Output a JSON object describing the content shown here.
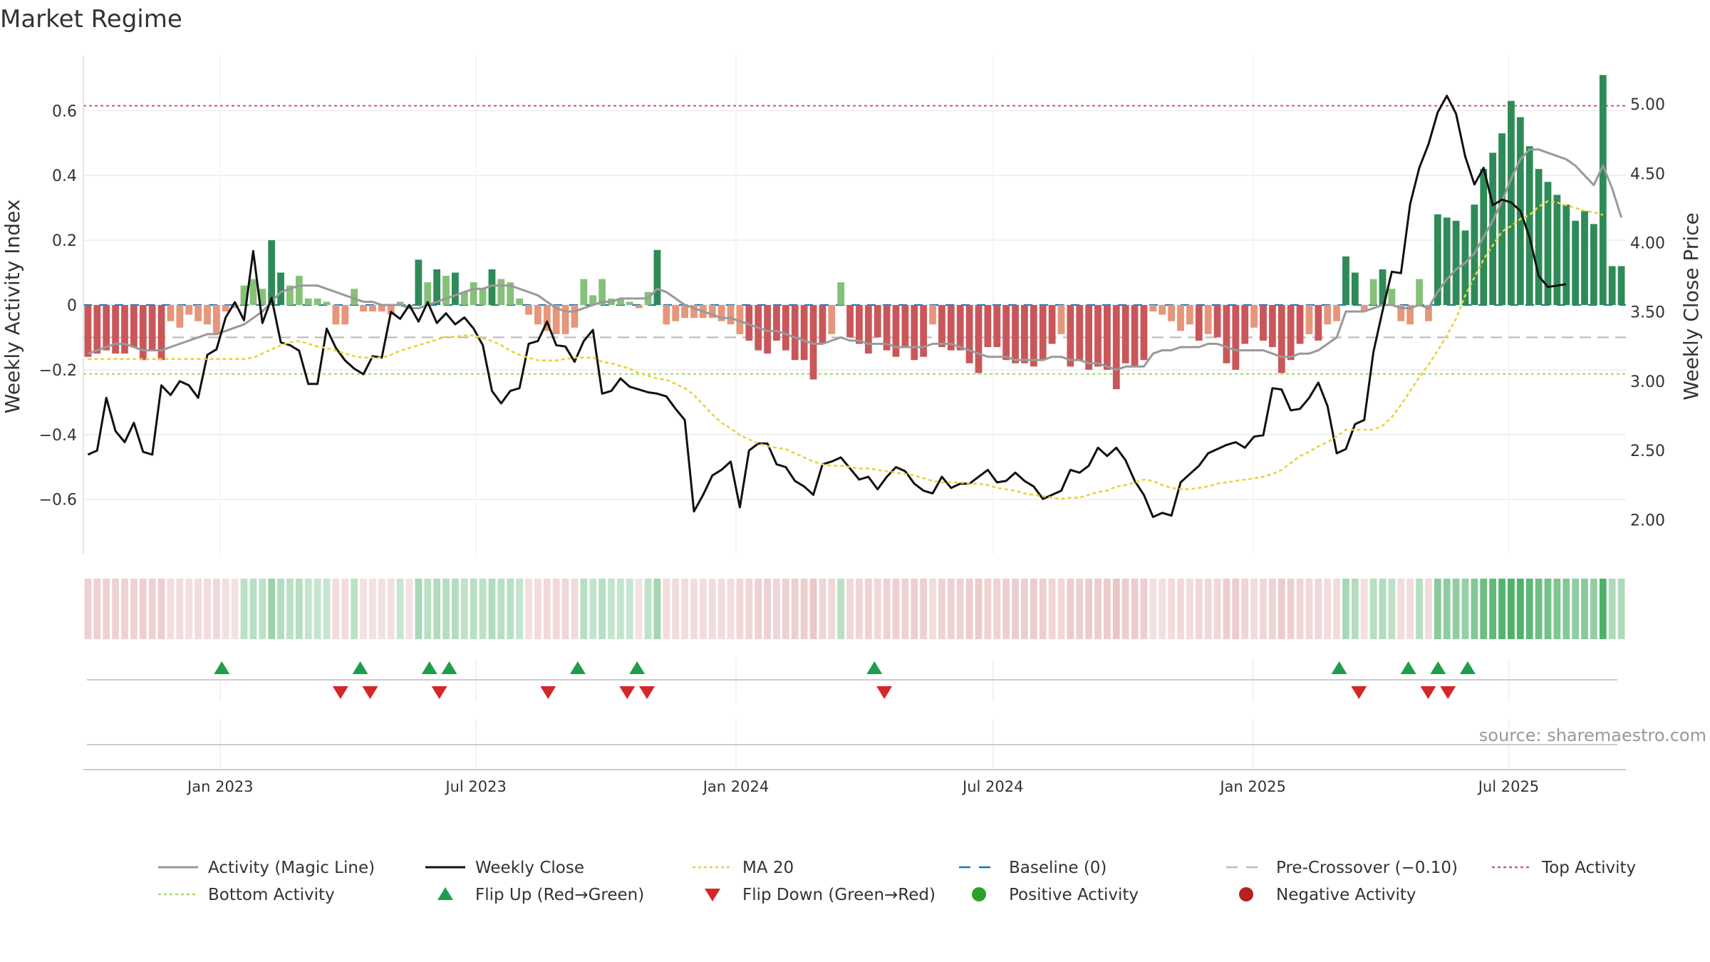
{
  "chart_data": {
    "type": "bar",
    "title": "Market Regime",
    "source_note": "source: sharemaestro.com",
    "x_date_range": [
      "2022-09-26",
      "2025-09-22"
    ],
    "x_ticks": [
      {
        "date": "2023-01-01",
        "label": "Jan 2023"
      },
      {
        "date": "2023-07-01",
        "label": "Jul 2023"
      },
      {
        "date": "2024-01-01",
        "label": "Jan 2024"
      },
      {
        "date": "2024-07-01",
        "label": "Jul 2024"
      },
      {
        "date": "2025-01-01",
        "label": "Jan 2025"
      },
      {
        "date": "2025-07-01",
        "label": "Jul 2025"
      }
    ],
    "y_left": {
      "label": "Weekly Activity Index",
      "range": [
        -0.77,
        0.77
      ],
      "ticks": [
        0.6,
        0.4,
        0.2,
        0,
        -0.2,
        -0.4,
        -0.6
      ],
      "tick_labels": [
        "0.6",
        "0.4",
        "0.2",
        "0",
        "−0.2",
        "−0.4",
        "−0.6"
      ]
    },
    "y_right": {
      "label": "Weekly Close Price",
      "range": [
        1.75,
        5.35
      ],
      "ticks": [
        5.0,
        4.5,
        4.0,
        3.5,
        3.0,
        2.5,
        2.0
      ],
      "tick_labels": [
        "5.00",
        "4.50",
        "4.00",
        "3.50",
        "3.00",
        "2.50",
        "2.00"
      ]
    },
    "top_activity": 0.615,
    "bottom_activity": -0.213,
    "pre_crossover": -0.1,
    "activity_bars": [
      -0.16,
      -0.15,
      -0.14,
      -0.15,
      -0.15,
      -0.13,
      -0.17,
      -0.14,
      -0.17,
      -0.05,
      -0.07,
      -0.03,
      -0.05,
      -0.06,
      -0.09,
      -0.02,
      -0.01,
      0.06,
      0.08,
      0.05,
      0.2,
      0.1,
      0.06,
      0.09,
      0.02,
      0.02,
      0.01,
      -0.06,
      -0.06,
      0.05,
      -0.02,
      -0.02,
      -0.02,
      -0.03,
      0.01,
      -0.01,
      0.14,
      0.07,
      0.11,
      0.09,
      0.1,
      0.04,
      0.07,
      0.05,
      0.11,
      0.08,
      0.07,
      0.02,
      -0.03,
      -0.06,
      -0.08,
      -0.09,
      -0.09,
      -0.07,
      0.08,
      0.03,
      0.08,
      0.02,
      0.02,
      0.01,
      -0.01,
      0.04,
      0.17,
      -0.06,
      -0.05,
      -0.04,
      -0.04,
      -0.04,
      -0.04,
      -0.05,
      -0.06,
      -0.09,
      -0.11,
      -0.14,
      -0.15,
      -0.11,
      -0.14,
      -0.17,
      -0.17,
      -0.23,
      -0.12,
      -0.09,
      0.07,
      -0.1,
      -0.12,
      -0.15,
      -0.1,
      -0.14,
      -0.16,
      -0.13,
      -0.17,
      -0.16,
      -0.06,
      -0.13,
      -0.14,
      -0.14,
      -0.18,
      -0.21,
      -0.13,
      -0.13,
      -0.17,
      -0.18,
      -0.18,
      -0.19,
      -0.17,
      -0.12,
      -0.09,
      -0.19,
      -0.17,
      -0.2,
      -0.19,
      -0.2,
      -0.26,
      -0.18,
      -0.19,
      -0.17,
      -0.02,
      -0.03,
      -0.05,
      -0.08,
      -0.06,
      -0.11,
      -0.09,
      -0.1,
      -0.18,
      -0.2,
      -0.12,
      -0.07,
      -0.11,
      -0.13,
      -0.21,
      -0.17,
      -0.12,
      -0.09,
      -0.11,
      -0.06,
      -0.05,
      0.15,
      0.1,
      -0.02,
      0.08,
      0.11,
      0.05,
      -0.05,
      -0.06,
      0.08,
      -0.05,
      0.28,
      0.27,
      0.26,
      0.23,
      0.31,
      0.42,
      0.47,
      0.53,
      0.63,
      0.58,
      0.49,
      0.42,
      0.38,
      0.34,
      0.31,
      0.26,
      0.29,
      0.25,
      0.71,
      0.12,
      0.12
    ],
    "bar_colors": {
      "positive_strong": "#2e8b57",
      "positive_light": "#86c17a",
      "negative_strong": "#c9575a",
      "negative_light": "#e6967a"
    },
    "series": [
      {
        "name": "Activity (Magic Line)",
        "color": "#999999",
        "axis": "left",
        "values": [
          -0.15,
          -0.14,
          -0.13,
          -0.12,
          -0.12,
          -0.13,
          -0.14,
          -0.14,
          -0.14,
          -0.13,
          -0.12,
          -0.11,
          -0.1,
          -0.09,
          -0.09,
          -0.08,
          -0.07,
          -0.06,
          -0.04,
          -0.02,
          0.01,
          0.04,
          0.05,
          0.06,
          0.06,
          0.06,
          0.05,
          0.04,
          0.03,
          0.02,
          0.01,
          0.01,
          0.0,
          0.0,
          0.0,
          -0.01,
          -0.01,
          0.0,
          0.01,
          0.02,
          0.03,
          0.04,
          0.05,
          0.05,
          0.06,
          0.06,
          0.06,
          0.05,
          0.04,
          0.03,
          0.01,
          -0.01,
          -0.02,
          -0.02,
          -0.01,
          0.0,
          0.01,
          0.01,
          0.02,
          0.02,
          0.02,
          0.02,
          0.05,
          0.04,
          0.02,
          0.0,
          -0.01,
          -0.02,
          -0.03,
          -0.04,
          -0.04,
          -0.05,
          -0.06,
          -0.07,
          -0.08,
          -0.08,
          -0.09,
          -0.1,
          -0.11,
          -0.12,
          -0.12,
          -0.11,
          -0.1,
          -0.11,
          -0.11,
          -0.12,
          -0.12,
          -0.12,
          -0.13,
          -0.13,
          -0.13,
          -0.13,
          -0.12,
          -0.12,
          -0.12,
          -0.13,
          -0.14,
          -0.15,
          -0.16,
          -0.16,
          -0.16,
          -0.17,
          -0.17,
          -0.17,
          -0.17,
          -0.16,
          -0.16,
          -0.17,
          -0.17,
          -0.18,
          -0.18,
          -0.19,
          -0.2,
          -0.19,
          -0.19,
          -0.19,
          -0.15,
          -0.14,
          -0.14,
          -0.13,
          -0.13,
          -0.13,
          -0.12,
          -0.12,
          -0.13,
          -0.14,
          -0.14,
          -0.14,
          -0.14,
          -0.15,
          -0.16,
          -0.16,
          -0.15,
          -0.15,
          -0.14,
          -0.12,
          -0.1,
          -0.02,
          -0.02,
          -0.02,
          -0.01,
          0.0,
          0.0,
          -0.01,
          -0.01,
          0.0,
          -0.01,
          0.04,
          0.08,
          0.11,
          0.13,
          0.16,
          0.21,
          0.26,
          0.32,
          0.39,
          0.45,
          0.48,
          0.48,
          0.47,
          0.46,
          0.45,
          0.43,
          0.4,
          0.37,
          0.43,
          0.36,
          0.27
        ]
      },
      {
        "name": "Weekly Close",
        "color": "#111111",
        "axis": "right",
        "values": [
          2.47,
          2.5,
          2.88,
          2.64,
          2.56,
          2.7,
          2.49,
          2.47,
          2.97,
          2.9,
          3.0,
          2.97,
          2.88,
          3.19,
          3.23,
          3.46,
          3.57,
          3.44,
          3.94,
          3.42,
          3.6,
          3.28,
          3.26,
          3.22,
          2.98,
          2.98,
          3.38,
          3.24,
          3.15,
          3.09,
          3.05,
          3.18,
          3.17,
          3.5,
          3.45,
          3.55,
          3.43,
          3.57,
          3.42,
          3.49,
          3.41,
          3.46,
          3.38,
          3.26,
          2.93,
          2.84,
          2.93,
          2.95,
          3.27,
          3.29,
          3.43,
          3.26,
          3.25,
          3.14,
          3.29,
          3.37,
          2.91,
          2.93,
          3.02,
          2.96,
          2.94,
          2.92,
          2.91,
          2.89,
          2.8,
          2.72,
          2.06,
          2.18,
          2.32,
          2.36,
          2.42,
          2.09,
          2.5,
          2.55,
          2.55,
          2.4,
          2.38,
          2.28,
          2.24,
          2.18,
          2.4,
          2.42,
          2.45,
          2.37,
          2.29,
          2.31,
          2.22,
          2.31,
          2.38,
          2.35,
          2.26,
          2.21,
          2.19,
          2.31,
          2.23,
          2.26,
          2.26,
          2.31,
          2.36,
          2.27,
          2.28,
          2.34,
          2.28,
          2.24,
          2.15,
          2.18,
          2.21,
          2.36,
          2.34,
          2.39,
          2.52,
          2.46,
          2.52,
          2.43,
          2.28,
          2.18,
          2.02,
          2.05,
          2.03,
          2.27,
          2.33,
          2.39,
          2.48,
          2.51,
          2.54,
          2.56,
          2.52,
          2.6,
          2.61,
          2.95,
          2.94,
          2.79,
          2.8,
          2.88,
          2.99,
          2.82,
          2.48,
          2.51,
          2.69,
          2.72,
          3.21,
          3.51,
          3.79,
          3.78,
          4.28,
          4.54,
          4.71,
          4.94,
          5.06,
          4.93,
          4.62,
          4.42,
          4.54,
          4.27,
          4.31,
          4.29,
          4.23,
          4.04,
          3.76,
          3.68,
          3.69,
          3.7
        ]
      },
      {
        "name": "MA 20",
        "color": "#e6d43a",
        "axis": "right",
        "values": [
          3.16,
          3.16,
          3.16,
          3.16,
          3.16,
          3.16,
          3.16,
          3.16,
          3.16,
          3.16,
          3.16,
          3.16,
          3.16,
          3.16,
          3.16,
          3.16,
          3.16,
          3.16,
          3.17,
          3.2,
          3.23,
          3.26,
          3.28,
          3.29,
          3.27,
          3.25,
          3.24,
          3.22,
          3.2,
          3.18,
          3.17,
          3.17,
          3.17,
          3.19,
          3.22,
          3.24,
          3.26,
          3.28,
          3.3,
          3.32,
          3.32,
          3.33,
          3.33,
          3.31,
          3.29,
          3.26,
          3.22,
          3.19,
          3.17,
          3.15,
          3.15,
          3.15,
          3.16,
          3.17,
          3.17,
          3.17,
          3.14,
          3.13,
          3.11,
          3.09,
          3.06,
          3.04,
          3.02,
          3.01,
          2.98,
          2.95,
          2.9,
          2.83,
          2.76,
          2.7,
          2.66,
          2.61,
          2.58,
          2.55,
          2.53,
          2.52,
          2.51,
          2.48,
          2.45,
          2.42,
          2.4,
          2.39,
          2.39,
          2.38,
          2.37,
          2.37,
          2.36,
          2.35,
          2.34,
          2.33,
          2.32,
          2.3,
          2.28,
          2.27,
          2.27,
          2.27,
          2.26,
          2.26,
          2.25,
          2.23,
          2.22,
          2.21,
          2.19,
          2.18,
          2.17,
          2.16,
          2.15,
          2.16,
          2.16,
          2.18,
          2.2,
          2.21,
          2.24,
          2.25,
          2.27,
          2.29,
          2.28,
          2.25,
          2.23,
          2.22,
          2.22,
          2.23,
          2.24,
          2.26,
          2.27,
          2.28,
          2.29,
          2.3,
          2.31,
          2.33,
          2.36,
          2.41,
          2.46,
          2.49,
          2.53,
          2.56,
          2.6,
          2.65,
          2.65,
          2.65,
          2.65,
          2.68,
          2.74,
          2.83,
          2.93,
          3.03,
          3.12,
          3.22,
          3.33,
          3.45,
          3.62,
          3.75,
          3.88,
          3.98,
          4.08,
          4.12,
          4.17,
          4.2,
          4.26,
          4.3,
          4.29,
          4.27,
          4.25,
          4.23,
          4.22,
          4.2
        ]
      }
    ],
    "flip_up_dates": [
      "2023-01-02",
      "2023-04-10",
      "2023-05-29",
      "2023-06-12",
      "2023-09-11",
      "2023-10-23",
      "2024-04-08",
      "2025-03-03",
      "2025-04-21",
      "2025-05-12",
      "2025-06-02"
    ],
    "flip_down_dates": [
      "2023-03-27",
      "2023-04-17",
      "2023-06-05",
      "2023-08-21",
      "2023-10-16",
      "2023-10-30",
      "2024-04-15",
      "2025-03-17",
      "2025-05-05",
      "2025-05-19"
    ],
    "legend": [
      {
        "label": "Activity (Magic Line)",
        "kind": "line",
        "color": "#999999"
      },
      {
        "label": "Weekly Close",
        "kind": "line",
        "color": "#111111"
      },
      {
        "label": "MA 20",
        "kind": "dotted",
        "color": "#e6d43a"
      },
      {
        "label": "Baseline (0)",
        "kind": "dashed",
        "color": "#1f77b4"
      },
      {
        "label": "Pre-Crossover (−0.10)",
        "kind": "dashed",
        "color": "#bbbbbb"
      },
      {
        "label": "Top Activity",
        "kind": "dotted",
        "color": "#c8607a"
      },
      {
        "label": "Bottom Activity",
        "kind": "dotted",
        "color": "#a6d96a"
      },
      {
        "label": "Flip Up (Red→Green)",
        "kind": "tri-up",
        "color": "#1e9e4a"
      },
      {
        "label": "Flip Down (Green→Red)",
        "kind": "tri-down",
        "color": "#d62728"
      },
      {
        "label": "Positive Activity",
        "kind": "dot",
        "color": "#2ca02c"
      },
      {
        "label": "Negative Activity",
        "kind": "dot",
        "color": "#b22222"
      }
    ]
  }
}
